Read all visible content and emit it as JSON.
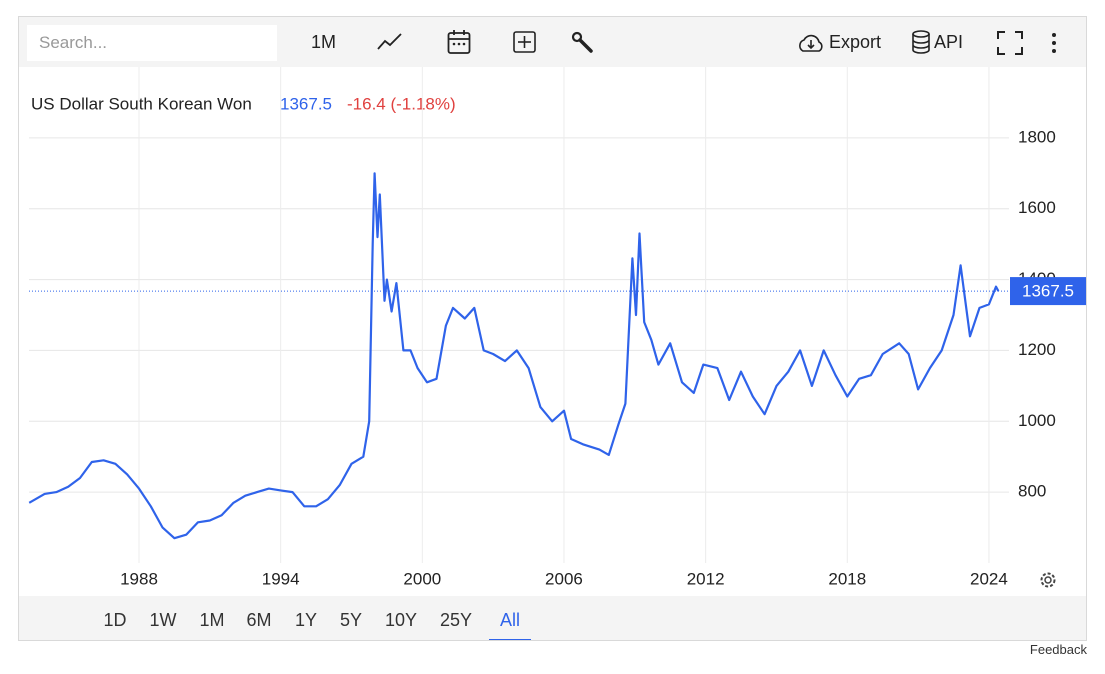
{
  "chart_data": {
    "type": "line",
    "title": "US Dollar South Korean Won",
    "last_value": 1367.5,
    "change_label": "-16.4 (-1.18%)",
    "xlim": [
      1983.34,
      2024.85
    ],
    "xticks": [
      1988,
      1994,
      2000,
      2006,
      2012,
      2018,
      2024
    ],
    "ylim": [
      600,
      2000
    ],
    "yticks": [
      800,
      1000,
      1200,
      1400,
      1600,
      1800
    ],
    "grid": true,
    "series": [
      {
        "name": "US Dollar South Korean Won",
        "color": "#2f63ea",
        "x": [
          1983.35,
          1984,
          1984.5,
          1985,
          1985.5,
          1986,
          1986.5,
          1987,
          1987.5,
          1988,
          1988.5,
          1989,
          1989.5,
          1990,
          1990.5,
          1991,
          1991.5,
          1992,
          1992.5,
          1993,
          1993.5,
          1994,
          1994.5,
          1995,
          1995.5,
          1996,
          1996.5,
          1997,
          1997.5,
          1997.75,
          1997.9,
          1997.98,
          1998.1,
          1998.2,
          1998.4,
          1998.5,
          1998.7,
          1998.9,
          1999.2,
          1999.5,
          1999.8,
          2000.2,
          2000.6,
          2001,
          2001.3,
          2001.8,
          2002.2,
          2002.6,
          2003,
          2003.5,
          2004,
          2004.5,
          2005,
          2005.5,
          2006,
          2006.3,
          2006.8,
          2007.5,
          2007.9,
          2008.3,
          2008.6,
          2008.9,
          2009.05,
          2009.2,
          2009.4,
          2009.7,
          2010,
          2010.5,
          2011,
          2011.5,
          2011.9,
          2012.5,
          2013,
          2013.5,
          2014,
          2014.5,
          2015,
          2015.5,
          2016,
          2016.5,
          2017,
          2017.5,
          2018,
          2018.5,
          2019,
          2019.5,
          2020.2,
          2020.6,
          2021,
          2021.5,
          2022,
          2022.5,
          2022.8,
          2023.2,
          2023.6,
          2024,
          2024.3,
          2024.4
        ],
        "values": [
          770,
          795,
          800,
          815,
          840,
          885,
          890,
          880,
          850,
          810,
          760,
          700,
          670,
          680,
          715,
          720,
          735,
          770,
          790,
          800,
          810,
          805,
          800,
          760,
          760,
          780,
          820,
          880,
          900,
          1000,
          1500,
          1700,
          1520,
          1640,
          1340,
          1400,
          1310,
          1390,
          1200,
          1200,
          1150,
          1110,
          1120,
          1270,
          1320,
          1290,
          1320,
          1200,
          1190,
          1170,
          1200,
          1150,
          1040,
          1000,
          1030,
          950,
          935,
          920,
          905,
          990,
          1050,
          1460,
          1300,
          1530,
          1280,
          1230,
          1160,
          1220,
          1110,
          1080,
          1160,
          1150,
          1060,
          1140,
          1070,
          1020,
          1100,
          1140,
          1200,
          1100,
          1200,
          1130,
          1070,
          1120,
          1130,
          1190,
          1220,
          1190,
          1090,
          1150,
          1200,
          1300,
          1440,
          1240,
          1320,
          1330,
          1380,
          1367.5
        ]
      }
    ]
  },
  "toolbar": {
    "search_placeholder": "Search...",
    "interval": "1M",
    "export": "Export",
    "api": "API"
  },
  "ranges": [
    "1D",
    "1W",
    "1M",
    "6M",
    "1Y",
    "5Y",
    "10Y",
    "25Y",
    "All"
  ],
  "active_range_index": 8,
  "feedback": "Feedback"
}
